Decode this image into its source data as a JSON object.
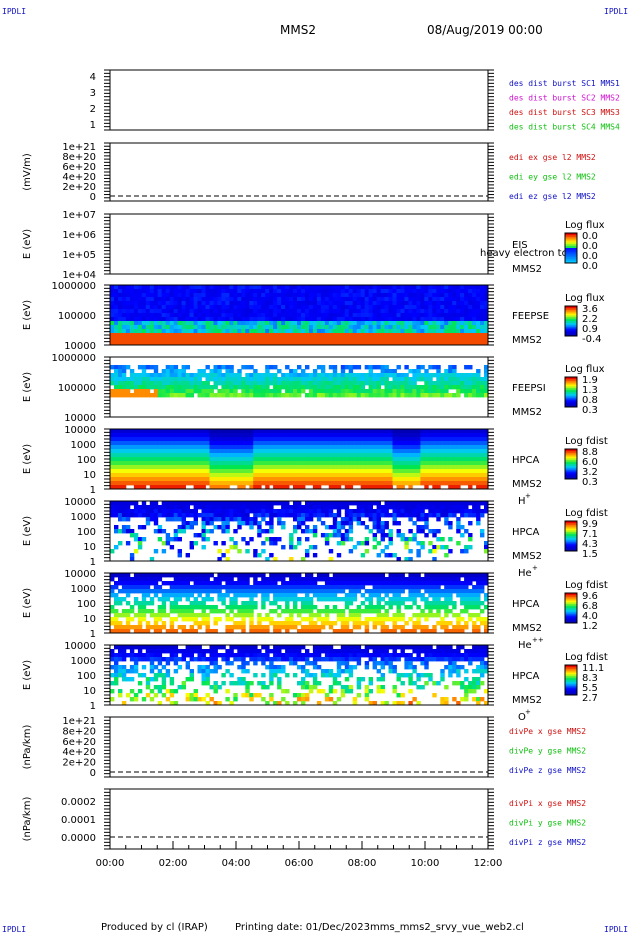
{
  "header": {
    "corner_tl": "IPDLI",
    "corner_tr": "IPDLI",
    "corner_bl": "IPDLI",
    "corner_br": "IPDLI",
    "title": "MMS2",
    "date": "08/Aug/2019 00:00"
  },
  "footer": {
    "produced_by": "Produced by cl (IRAP)",
    "printing_date": "Printing date: 01/Dec/2023",
    "filename": "mms_mms2_srvy_vue_web2.cl"
  },
  "colors": {
    "blue": "#1010c8",
    "magenta": "#d010d0",
    "red": "#d01010",
    "green": "#10c010"
  },
  "chart_data": {
    "type": "heatmap",
    "x_ticks": [
      "00:00",
      "02:00",
      "04:00",
      "06:00",
      "08:00",
      "10:00",
      "12:00"
    ],
    "xlim": [
      "00:00",
      "12:00"
    ],
    "panels": [
      {
        "kind": "line",
        "ylabel": "",
        "yticks": [
          "4",
          "3",
          "2",
          "1"
        ],
        "legend": [
          {
            "text": "des dist burst SC1 MMS1",
            "color": "#1010c8"
          },
          {
            "text": "des dist burst SC2 MMS2",
            "color": "#d010d0"
          },
          {
            "text": "des dist burst SC3 MMS3",
            "color": "#d01010"
          },
          {
            "text": "des dist burst SC4 MMS4",
            "color": "#10c010"
          }
        ]
      },
      {
        "kind": "line",
        "ylabel": "(mV/m)",
        "yticks": [
          "1e+21",
          "8e+20",
          "6e+20",
          "4e+20",
          "2e+20",
          "0"
        ],
        "legend": [
          {
            "text": "edi ex gse l2 MMS2",
            "color": "#d01010"
          },
          {
            "text": "edi ey gse l2 MMS2",
            "color": "#10c010"
          },
          {
            "text": "edi ez gse l2 MMS2",
            "color": "#1010c8"
          }
        ]
      },
      {
        "kind": "spectrogram",
        "ylabel": "E (eV)",
        "yticks": [
          "1e+07",
          "1e+06",
          "1e+05",
          "1e+04"
        ],
        "side_labels": [
          "EIS",
          "MMS2"
        ],
        "overlay": "heavy electron to",
        "cbar_title": "Log flux",
        "cbar_ticks": [
          "0.0",
          "0.0",
          "0.0",
          "0.0"
        ]
      },
      {
        "kind": "spectrogram",
        "ylabel": "E (eV)",
        "yticks": [
          "1000000",
          "100000",
          "10000"
        ],
        "side_labels": [
          "FEEPSE",
          "MMS2"
        ],
        "cbar_title": "Log flux",
        "cbar_ticks": [
          "3.6",
          "2.2",
          "0.9",
          "-0.4"
        ]
      },
      {
        "kind": "spectrogram",
        "ylabel": "E (eV)",
        "yticks": [
          "1000000",
          "100000",
          "10000"
        ],
        "side_labels": [
          "FEEPSI",
          "MMS2"
        ],
        "cbar_title": "Log flux",
        "cbar_ticks": [
          "1.9",
          "1.3",
          "0.8",
          "0.3"
        ]
      },
      {
        "kind": "spectrogram",
        "ylabel": "E (eV)",
        "yticks": [
          "10000",
          "1000",
          "100",
          "10",
          "1"
        ],
        "side_labels": [
          "HPCA",
          "MMS2"
        ],
        "species": "H",
        "charge": "+",
        "cbar_title": "Log fdist",
        "cbar_ticks": [
          "8.8",
          "6.0",
          "3.2",
          "0.3"
        ]
      },
      {
        "kind": "spectrogram",
        "ylabel": "E (eV)",
        "yticks": [
          "10000",
          "1000",
          "100",
          "10",
          "1"
        ],
        "side_labels": [
          "HPCA",
          "MMS2"
        ],
        "species": "He",
        "charge": "+",
        "cbar_title": "Log fdist",
        "cbar_ticks": [
          "9.9",
          "7.1",
          "4.3",
          "1.5"
        ]
      },
      {
        "kind": "spectrogram",
        "ylabel": "E (eV)",
        "yticks": [
          "10000",
          "1000",
          "100",
          "10",
          "1"
        ],
        "side_labels": [
          "HPCA",
          "MMS2"
        ],
        "species": "He",
        "charge": "++",
        "cbar_title": "Log fdist",
        "cbar_ticks": [
          "9.6",
          "6.8",
          "4.0",
          "1.2"
        ]
      },
      {
        "kind": "spectrogram",
        "ylabel": "E (eV)",
        "yticks": [
          "10000",
          "1000",
          "100",
          "10",
          "1"
        ],
        "side_labels": [
          "HPCA",
          "MMS2"
        ],
        "species": "O",
        "charge": "+",
        "cbar_title": "Log fdist",
        "cbar_ticks": [
          "11.1",
          "8.3",
          "5.5",
          "2.7"
        ]
      },
      {
        "kind": "line",
        "ylabel": "(nPa/km)",
        "yticks": [
          "1e+21",
          "8e+20",
          "6e+20",
          "4e+20",
          "2e+20",
          "0"
        ],
        "legend": [
          {
            "text": "divPe x gse MMS2",
            "color": "#d01010"
          },
          {
            "text": "divPe y gse MMS2",
            "color": "#10c010"
          },
          {
            "text": "divPe z gse MMS2",
            "color": "#1010c8"
          }
        ]
      },
      {
        "kind": "line",
        "ylabel": "(nPa/km)",
        "yticks": [
          "0.0002",
          "0.0001",
          "0.0000"
        ],
        "legend": [
          {
            "text": "divPi x gse MMS2",
            "color": "#d01010"
          },
          {
            "text": "divPi y gse MMS2",
            "color": "#10c010"
          },
          {
            "text": "divPi z gse MMS2",
            "color": "#1010c8"
          }
        ]
      }
    ]
  }
}
